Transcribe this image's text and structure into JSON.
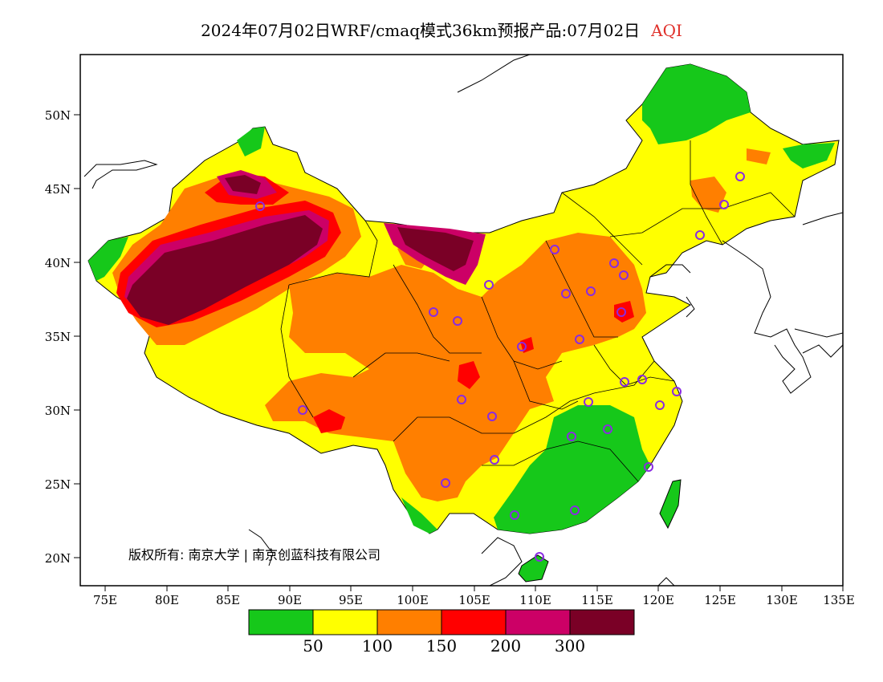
{
  "title": {
    "main": "2024年07月02日WRF/cmaq模式36km预报产品:07月02日",
    "variable": "AQI"
  },
  "axes": {
    "y_ticks": [
      "50N",
      "45N",
      "40N",
      "35N",
      "30N",
      "25N",
      "20N"
    ],
    "x_ticks": [
      "75E",
      "80E",
      "85E",
      "90E",
      "95E",
      "100E",
      "105E",
      "110E",
      "115E",
      "120E",
      "125E",
      "130E",
      "135E"
    ]
  },
  "copyright": "版权所有: 南京大学 | 南京创蓝科技有限公司",
  "legend": {
    "colors": [
      "#16c81a",
      "#ffff00",
      "#ff7f00",
      "#ff0000",
      "#cc0066",
      "#7a0026"
    ],
    "labels": [
      "50",
      "100",
      "150",
      "200",
      "300"
    ]
  },
  "colors": {
    "good": "#16c81a",
    "moderate": "#ffff00",
    "usg": "#ff7f00",
    "unhealthy": "#ff0000",
    "very_unhealthy": "#cc0066",
    "hazardous": "#7a0026",
    "station_marker": "#8a2be2"
  }
}
